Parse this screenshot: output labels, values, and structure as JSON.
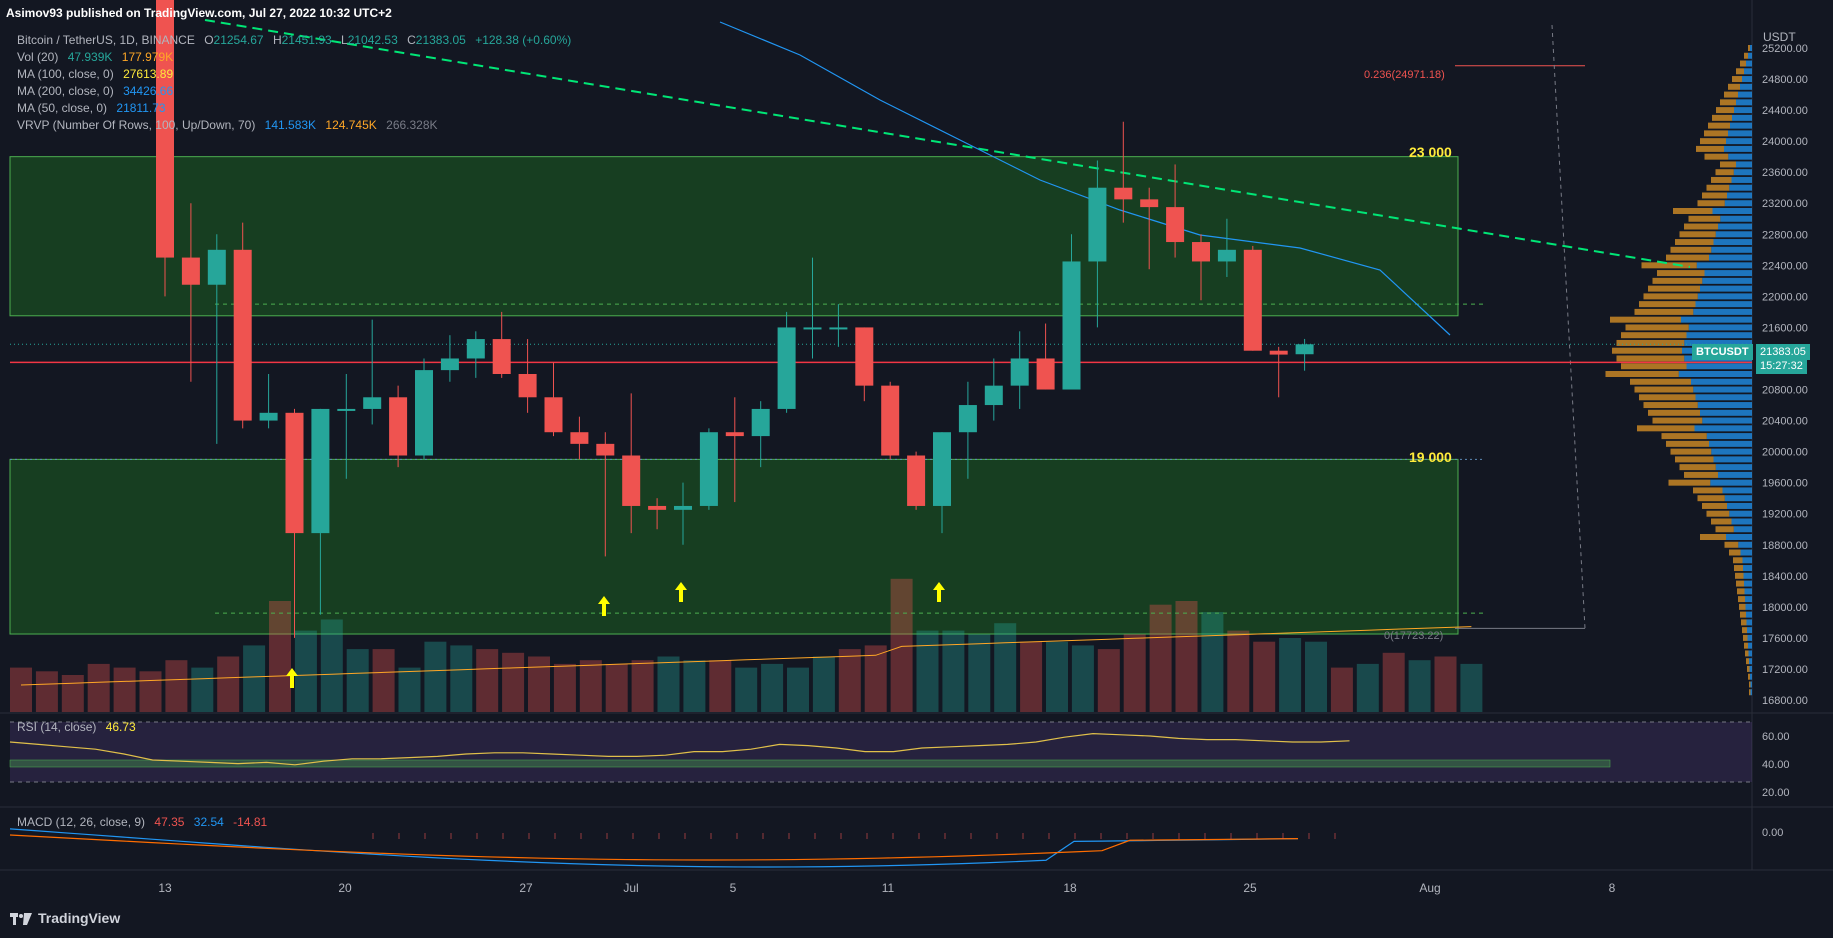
{
  "header": {
    "publisher": "Asimov93 published on TradingView.com, Jul 27, 2022 10:32 UTC+2"
  },
  "legend": {
    "symbol": "Bitcoin / TetherUS, 1D, BINANCE",
    "o_label": "O",
    "o": "21254.67",
    "h_label": "H",
    "h": "21451.93",
    "l_label": "L",
    "l": "21042.53",
    "c_label": "C",
    "c": "21383.05",
    "change": "+128.38 (+0.60%)",
    "vol_label": "Vol (20)",
    "vol_a": "47.939K",
    "vol_b": "177.979K",
    "ma100_label": "MA (100, close, 0)",
    "ma100": "27613.89",
    "ma200_label": "MA (200, close, 0)",
    "ma200": "34426.66",
    "ma50_label": "MA (50, close, 0)",
    "ma50": "21811.73",
    "vrvp_label": "VRVP (Number Of Rows, 100, Up/Down, 70)",
    "vrvp_a": "141.583K",
    "vrvp_b": "124.745K",
    "vrvp_c": "266.328K",
    "rsi_label": "RSI (14, close)",
    "rsi": "46.73",
    "macd_label": "MACD (12, 26, close, 9)",
    "macd_a": "47.35",
    "macd_b": "32.54",
    "macd_c": "-14.81"
  },
  "annotations": {
    "zone_top_label": "23 000",
    "zone_bottom_label": "19 000",
    "fib_0236": "0.236(24971.18)",
    "fib_0": "0(17723.22)"
  },
  "price_axis": {
    "unit": "USDT",
    "ticks": [
      "25200.00",
      "24800.00",
      "24400.00",
      "24000.00",
      "23600.00",
      "23200.00",
      "22800.00",
      "22400.00",
      "22000.00",
      "21600.00",
      "20800.00",
      "20400.00",
      "20000.00",
      "19600.00",
      "19200.00",
      "18800.00",
      "18400.00",
      "18000.00",
      "17600.00",
      "17200.00",
      "16800.00"
    ],
    "symbol_tag": "BTCUSDT",
    "last_price": "21383.05",
    "countdown": "15:27:32"
  },
  "rsi_axis": [
    "60.00",
    "40.00",
    "20.00"
  ],
  "macd_axis": [
    "0.00"
  ],
  "time_axis": [
    "13",
    "20",
    "27",
    "Jul",
    "5",
    "11",
    "18",
    "25",
    "Aug",
    "8"
  ],
  "footer": {
    "brand": "TradingView"
  },
  "colors": {
    "bg": "#131722",
    "up": "#26a69a",
    "down": "#ef5350",
    "zone": "#1b5e20",
    "ma": "#2196f3",
    "trend": "#00e676"
  },
  "chart_data": {
    "type": "candlestick",
    "title": "Bitcoin / TetherUS, 1D, BINANCE",
    "ylim": [
      16600,
      25500
    ],
    "candles": [
      {
        "date": "Jun 13",
        "o": 26600,
        "h": 26900,
        "l": 22000,
        "c": 22500
      },
      {
        "date": "Jun 14",
        "o": 22500,
        "h": 23200,
        "l": 20900,
        "c": 22150
      },
      {
        "date": "Jun 15",
        "o": 22150,
        "h": 22800,
        "l": 20100,
        "c": 22600
      },
      {
        "date": "Jun 16",
        "o": 22600,
        "h": 22950,
        "l": 20300,
        "c": 20400
      },
      {
        "date": "Jun 17",
        "o": 20400,
        "h": 21000,
        "l": 20300,
        "c": 20500
      },
      {
        "date": "Jun 18",
        "o": 20500,
        "h": 20550,
        "l": 17600,
        "c": 18950
      },
      {
        "date": "Jun 19",
        "o": 18950,
        "h": 20550,
        "l": 17900,
        "c": 20550
      },
      {
        "date": "Jun 20",
        "o": 20550,
        "h": 21000,
        "l": 19650,
        "c": 20550
      },
      {
        "date": "Jun 21",
        "o": 20550,
        "h": 21700,
        "l": 20350,
        "c": 20700
      },
      {
        "date": "Jun 22",
        "o": 20700,
        "h": 20850,
        "l": 19800,
        "c": 19950
      },
      {
        "date": "Jun 23",
        "o": 19950,
        "h": 21200,
        "l": 19900,
        "c": 21050
      },
      {
        "date": "Jun 24",
        "o": 21050,
        "h": 21500,
        "l": 20900,
        "c": 21200
      },
      {
        "date": "Jun 25",
        "o": 21200,
        "h": 21550,
        "l": 20950,
        "c": 21450
      },
      {
        "date": "Jun 26",
        "o": 21450,
        "h": 21800,
        "l": 20950,
        "c": 21000
      },
      {
        "date": "Jun 27",
        "o": 21000,
        "h": 21450,
        "l": 20500,
        "c": 20700
      },
      {
        "date": "Jun 28",
        "o": 20700,
        "h": 21150,
        "l": 20200,
        "c": 20250
      },
      {
        "date": "Jun 29",
        "o": 20250,
        "h": 20450,
        "l": 19900,
        "c": 20100
      },
      {
        "date": "Jun 30",
        "o": 20100,
        "h": 20250,
        "l": 18650,
        "c": 19950
      },
      {
        "date": "Jul 1",
        "o": 19950,
        "h": 20750,
        "l": 18950,
        "c": 19300
      },
      {
        "date": "Jul 2",
        "o": 19300,
        "h": 19400,
        "l": 19000,
        "c": 19250
      },
      {
        "date": "Jul 3",
        "o": 19250,
        "h": 19600,
        "l": 18800,
        "c": 19300
      },
      {
        "date": "Jul 4",
        "o": 19300,
        "h": 20300,
        "l": 19250,
        "c": 20250
      },
      {
        "date": "Jul 5",
        "o": 20250,
        "h": 20700,
        "l": 19350,
        "c": 20200
      },
      {
        "date": "Jul 6",
        "o": 20200,
        "h": 20650,
        "l": 19800,
        "c": 20550
      },
      {
        "date": "Jul 7",
        "o": 20550,
        "h": 21800,
        "l": 20500,
        "c": 21600
      },
      {
        "date": "Jul 8",
        "o": 21600,
        "h": 22500,
        "l": 21200,
        "c": 21600
      },
      {
        "date": "Jul 9",
        "o": 21600,
        "h": 21900,
        "l": 21350,
        "c": 21600
      },
      {
        "date": "Jul 10",
        "o": 21600,
        "h": 21600,
        "l": 20650,
        "c": 20850
      },
      {
        "date": "Jul 11",
        "o": 20850,
        "h": 20900,
        "l": 19900,
        "c": 19950
      },
      {
        "date": "Jul 12",
        "o": 19950,
        "h": 20000,
        "l": 19250,
        "c": 19300
      },
      {
        "date": "Jul 13",
        "o": 19300,
        "h": 20250,
        "l": 18950,
        "c": 20250
      },
      {
        "date": "Jul 14",
        "o": 20250,
        "h": 20900,
        "l": 19650,
        "c": 20600
      },
      {
        "date": "Jul 15",
        "o": 20600,
        "h": 21200,
        "l": 20400,
        "c": 20850
      },
      {
        "date": "Jul 16",
        "o": 20850,
        "h": 21550,
        "l": 20550,
        "c": 21200
      },
      {
        "date": "Jul 17",
        "o": 21200,
        "h": 21650,
        "l": 20800,
        "c": 20800
      },
      {
        "date": "Jul 18",
        "o": 20800,
        "h": 22800,
        "l": 20800,
        "c": 22450
      },
      {
        "date": "Jul 19",
        "o": 22450,
        "h": 23750,
        "l": 21600,
        "c": 23400
      },
      {
        "date": "Jul 20",
        "o": 23400,
        "h": 24250,
        "l": 22950,
        "c": 23250
      },
      {
        "date": "Jul 21",
        "o": 23250,
        "h": 23400,
        "l": 22350,
        "c": 23150
      },
      {
        "date": "Jul 22",
        "o": 23150,
        "h": 23700,
        "l": 22500,
        "c": 22700
      },
      {
        "date": "Jul 23",
        "o": 22700,
        "h": 22800,
        "l": 21950,
        "c": 22450
      },
      {
        "date": "Jul 24",
        "o": 22450,
        "h": 23000,
        "l": 22250,
        "c": 22600
      },
      {
        "date": "Jul 25",
        "o": 22600,
        "h": 22650,
        "l": 21300,
        "c": 21300
      },
      {
        "date": "Jul 26",
        "o": 21300,
        "h": 21350,
        "l": 20700,
        "c": 21250
      },
      {
        "date": "Jul 27",
        "o": 21254.67,
        "h": 21451.93,
        "l": 21042.53,
        "c": 21383.05
      }
    ],
    "horizontal_level": 21150,
    "zones": [
      {
        "from": 21750,
        "to": 23800
      },
      {
        "from": 17650,
        "to": 19900
      }
    ]
  }
}
